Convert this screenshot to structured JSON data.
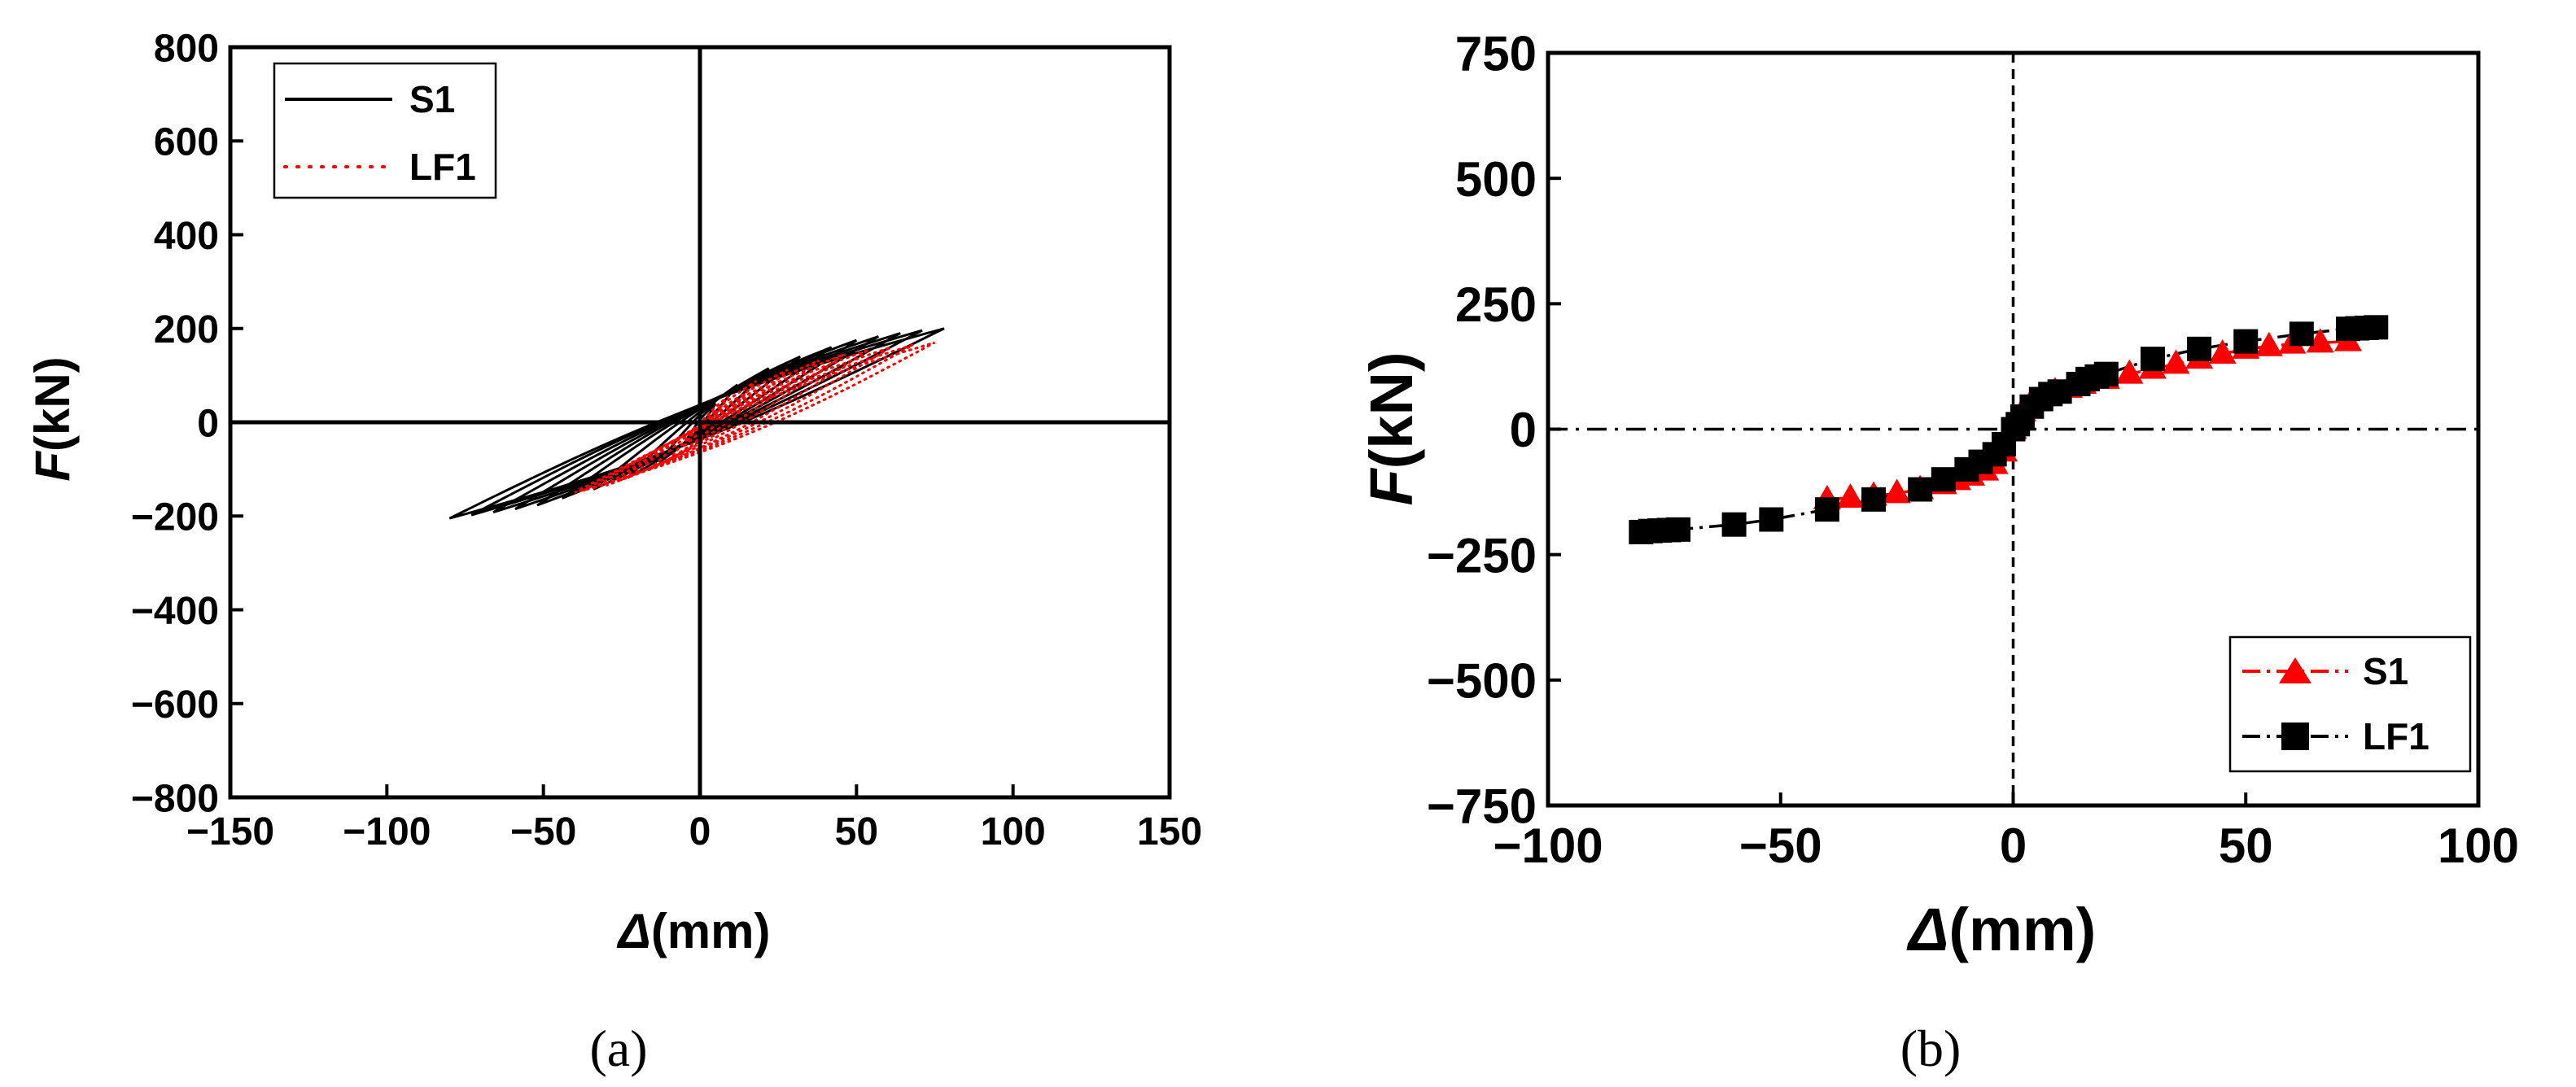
{
  "colors": {
    "black": "#000000",
    "red": "#ff0000"
  },
  "captions": {
    "a": "(a)",
    "b": "(b)"
  },
  "chart_data": [
    {
      "type": "line",
      "panel": "a",
      "xlabel_symbol": "Δ",
      "xlabel_unit": "(mm)",
      "ylabel_symbol": "F",
      "ylabel_unit": "(kN)",
      "xlim": [
        -150,
        150
      ],
      "ylim": [
        -800,
        800
      ],
      "xticks": [
        -150,
        -100,
        -50,
        0,
        50,
        100,
        150
      ],
      "yticks": [
        800,
        600,
        400,
        200,
        0,
        -200,
        -400,
        -600,
        -800
      ],
      "xtick_labels": [
        "−150",
        "−100",
        "−50",
        "0",
        "50",
        "100",
        "150"
      ],
      "ytick_labels": [
        "800",
        "600",
        "400",
        "200",
        "0",
        "−200",
        "−400",
        "−600",
        "−800"
      ],
      "grid": false,
      "legend_position": "top-left",
      "legend": [
        {
          "name": "S1",
          "color": "#000000",
          "style": "solid"
        },
        {
          "name": "LF1",
          "color": "#ff0000",
          "style": "dotted"
        }
      ],
      "series": [
        {
          "name": "S1",
          "color": "#000000",
          "style": "solid",
          "loops": [
            {
              "dmax": 78,
              "fmax": 200,
              "dmin": -80,
              "fmin": -205
            },
            {
              "dmax": 71,
              "fmax": 196,
              "dmin": -73,
              "fmin": -198
            },
            {
              "dmax": 64,
              "fmax": 190,
              "dmin": -66,
              "fmin": -192
            },
            {
              "dmax": 57,
              "fmax": 183,
              "dmin": -59,
              "fmin": -185
            },
            {
              "dmax": 50,
              "fmax": 175,
              "dmin": -52,
              "fmin": -177
            },
            {
              "dmax": 42,
              "fmax": 160,
              "dmin": -44,
              "fmin": -162
            },
            {
              "dmax": 32,
              "fmax": 140,
              "dmin": -34,
              "fmin": -143
            },
            {
              "dmax": 22,
              "fmax": 115,
              "dmin": -23,
              "fmin": -118
            },
            {
              "dmax": 12,
              "fmax": 80,
              "dmin": -13,
              "fmin": -85
            },
            {
              "dmax": 5,
              "fmax": 40,
              "dmin": -5,
              "fmin": -45
            }
          ]
        },
        {
          "name": "LF1",
          "color": "#ff0000",
          "style": "dotted",
          "loops": [
            {
              "dmax": 75,
              "fmax": 170,
              "dmin": -40,
              "fmin": -150
            },
            {
              "dmax": 68,
              "fmax": 165,
              "dmin": -37,
              "fmin": -145
            },
            {
              "dmax": 61,
              "fmax": 160,
              "dmin": -34,
              "fmin": -140
            },
            {
              "dmax": 54,
              "fmax": 155,
              "dmin": -30,
              "fmin": -135
            },
            {
              "dmax": 46,
              "fmax": 145,
              "dmin": -26,
              "fmin": -125
            },
            {
              "dmax": 38,
              "fmax": 132,
              "dmin": -22,
              "fmin": -115
            },
            {
              "dmax": 28,
              "fmax": 112,
              "dmin": -16,
              "fmin": -100
            },
            {
              "dmax": 18,
              "fmax": 88,
              "dmin": -10,
              "fmin": -80
            },
            {
              "dmax": 9,
              "fmax": 55,
              "dmin": -5,
              "fmin": -50
            }
          ]
        }
      ]
    },
    {
      "type": "line",
      "panel": "b",
      "xlabel_symbol": "Δ",
      "xlabel_unit": "(mm)",
      "ylabel_symbol": "F",
      "ylabel_unit": "(kN)",
      "xlim": [
        -100,
        100
      ],
      "ylim": [
        -750,
        750
      ],
      "xticks": [
        -100,
        -50,
        0,
        50,
        100
      ],
      "yticks": [
        750,
        500,
        250,
        0,
        -250,
        -500,
        -750
      ],
      "xtick_labels": [
        "−100",
        "−50",
        "0",
        "50",
        "100"
      ],
      "ytick_labels": [
        "750",
        "500",
        "250",
        "0",
        "−250",
        "−500",
        "−750"
      ],
      "grid": false,
      "legend_position": "bottom-right",
      "legend": [
        {
          "name": "S1",
          "color": "#ff0000",
          "marker": "triangle",
          "style": "dash-dot"
        },
        {
          "name": "LF1",
          "color": "#000000",
          "marker": "square",
          "style": "dash-dot"
        }
      ],
      "series": [
        {
          "name": "S1",
          "color": "#ff0000",
          "marker": "triangle",
          "x": [
            -40,
            -35,
            -30,
            -25,
            -20,
            -15,
            -12,
            -9,
            -6,
            -4,
            -2,
            0,
            2,
            4,
            6,
            9,
            12,
            15,
            20,
            25,
            30,
            35,
            40,
            45,
            50,
            55,
            60,
            66,
            72
          ],
          "y": [
            -140,
            -137,
            -133,
            -128,
            -120,
            -110,
            -102,
            -93,
            -83,
            -70,
            -45,
            0,
            35,
            55,
            65,
            75,
            82,
            90,
            100,
            110,
            120,
            130,
            140,
            150,
            160,
            165,
            170,
            172,
            175
          ]
        },
        {
          "name": "LF1",
          "color": "#000000",
          "marker": "square",
          "x": [
            -80,
            -78,
            -76,
            -74,
            -72,
            -60,
            -52,
            -40,
            -30,
            -20,
            -15,
            -10,
            -7,
            -4,
            -2,
            0,
            1,
            2,
            4,
            6,
            8,
            10,
            14,
            16,
            18,
            20,
            30,
            40,
            50,
            62,
            72,
            74,
            76,
            78
          ],
          "y": [
            -205,
            -203,
            -202,
            -201,
            -200,
            -190,
            -180,
            -160,
            -140,
            -120,
            -100,
            -80,
            -65,
            -50,
            -30,
            0,
            10,
            25,
            45,
            60,
            70,
            75,
            90,
            100,
            105,
            110,
            140,
            160,
            175,
            190,
            200,
            201,
            202,
            203
          ]
        }
      ]
    }
  ]
}
